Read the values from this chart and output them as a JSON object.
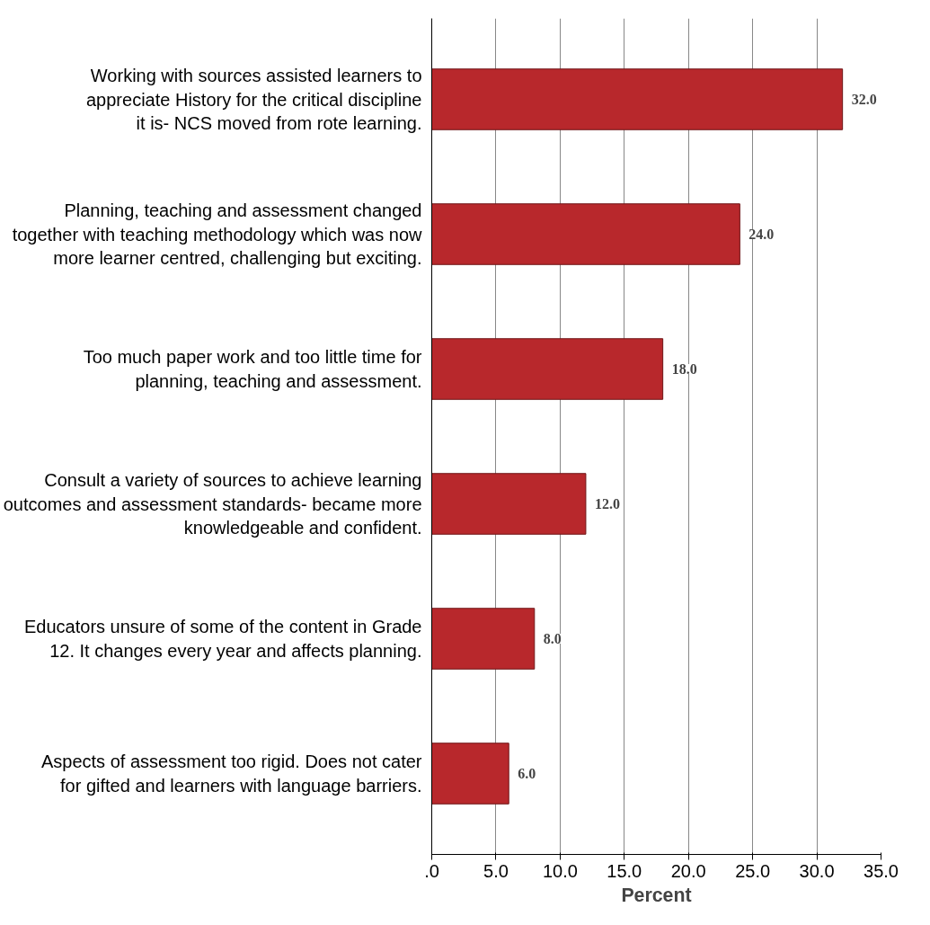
{
  "chart_data": {
    "type": "bar",
    "orientation": "horizontal",
    "xlabel": "Percent",
    "categories": [
      "Working with sources assisted learners to appreciate History for the critical discipline it is- NCS moved from rote learning.",
      "Planning, teaching and assessment changed together with teaching methodology which was now more learner centred, challenging but exciting.",
      "Too much paper work and too little time for planning, teaching and assessment.",
      "Consult a variety of sources to achieve learning outcomes and assessment standards- became more knowledgeable and confident.",
      "Educators unsure of some of the content in Grade 12. It changes every year and affects planning.",
      "Aspects of assessment too rigid. Does not cater for gifted and learners with language barriers."
    ],
    "values": [
      32,
      24,
      18,
      12,
      8,
      6
    ],
    "value_labels": [
      "32.0",
      "24.0",
      "18.0",
      "12.0",
      "8.0",
      "6.0"
    ],
    "color": "#b8282c",
    "xlim": [
      0,
      35
    ],
    "xticks": [
      {
        "value": 0,
        "label": ".0"
      },
      {
        "value": 5,
        "label": "5.0"
      },
      {
        "value": 10,
        "label": "10.0"
      },
      {
        "value": 15,
        "label": "15.0"
      },
      {
        "value": 20,
        "label": "20.0"
      },
      {
        "value": 25,
        "label": "25.0"
      },
      {
        "value": 30,
        "label": "30.0"
      },
      {
        "value": 35,
        "label": "35.0"
      }
    ],
    "grid": "x"
  }
}
